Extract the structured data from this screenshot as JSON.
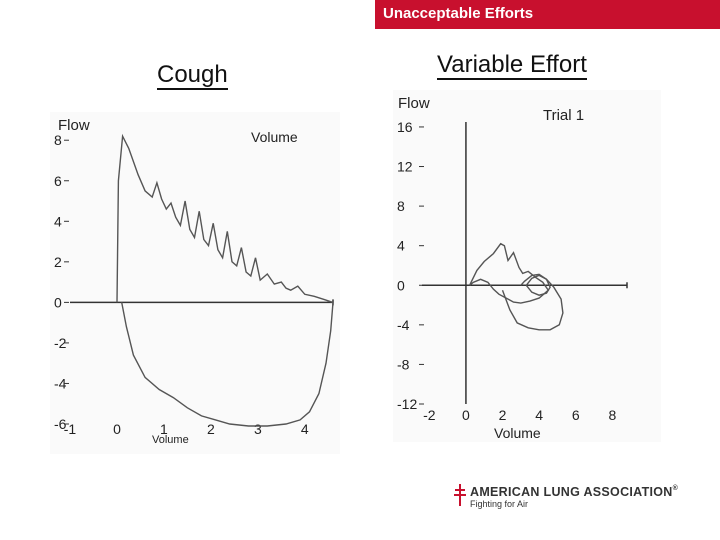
{
  "header": {
    "banner_text": "Unacceptable Efforts",
    "banner_color": "#c8102e"
  },
  "titles": {
    "left": "Cough",
    "right": "Variable Effort"
  },
  "chart_data": [
    {
      "type": "line",
      "title": "Cough",
      "ylabel": "Flow",
      "x_axis_label_top": "Volume",
      "xlabel": "Volume",
      "xlim": [
        -1,
        4.6
      ],
      "ylim": [
        -6,
        8.8
      ],
      "y_ticks": [
        8,
        6,
        4,
        2,
        0,
        -2,
        -4,
        -6
      ],
      "y_tick_labels": [
        "8",
        "6",
        "4",
        "2",
        "0",
        "-2",
        "-4",
        "-6"
      ],
      "x_ticks": [
        -1,
        0,
        1,
        2,
        3,
        4
      ],
      "x_tick_labels": [
        "-1",
        "0",
        "1",
        "2",
        "3",
        "4"
      ],
      "series": [
        {
          "loop": "expiratory",
          "x": [
            0,
            0.03,
            0.12,
            0.25,
            0.45,
            0.6,
            0.75,
            0.85,
            0.95,
            1.05,
            1.15,
            1.25,
            1.35,
            1.45,
            1.55,
            1.65,
            1.75,
            1.85,
            1.95,
            2.05,
            2.15,
            2.25,
            2.35,
            2.45,
            2.55,
            2.65,
            2.75,
            2.85,
            2.95,
            3.05,
            3.2,
            3.35,
            3.5,
            3.6,
            3.7,
            3.85,
            4.0,
            4.2,
            4.4,
            4.6
          ],
          "y": [
            0,
            6,
            8.2,
            7.6,
            6.3,
            5.5,
            5.2,
            5.9,
            5.1,
            4.6,
            4.9,
            4.2,
            3.8,
            5.0,
            3.6,
            3.2,
            4.5,
            3.1,
            2.8,
            3.9,
            2.6,
            2.2,
            3.5,
            2.0,
            1.8,
            2.7,
            1.5,
            1.3,
            2.2,
            1.1,
            1.4,
            0.9,
            1.0,
            0.7,
            0.6,
            0.8,
            0.4,
            0.3,
            0.15,
            0
          ]
        },
        {
          "loop": "inspiratory",
          "x": [
            0.1,
            0.2,
            0.35,
            0.6,
            0.9,
            1.2,
            1.5,
            1.8,
            2.1,
            2.4,
            2.8,
            3.2,
            3.6,
            3.9,
            4.1,
            4.3,
            4.45,
            4.55,
            4.6
          ],
          "y": [
            0,
            -1.2,
            -2.6,
            -3.7,
            -4.3,
            -4.7,
            -5.2,
            -5.6,
            -5.8,
            -6.0,
            -6.1,
            -6.1,
            -6.0,
            -5.8,
            -5.4,
            -4.5,
            -3.0,
            -1.4,
            0
          ]
        }
      ]
    },
    {
      "type": "line",
      "title": "Variable Effort",
      "legend": "Trial 1",
      "ylabel": "Flow",
      "xlabel": "Volume",
      "xlim": [
        -2.4,
        8.8
      ],
      "ylim": [
        -12,
        16.5
      ],
      "y_ticks": [
        16,
        12,
        8,
        4,
        0,
        -4,
        -8,
        -12
      ],
      "y_tick_labels": [
        "16",
        "12",
        "8",
        "4",
        "0",
        "-4",
        "-8",
        "-12"
      ],
      "x_ticks": [
        -2,
        0,
        2,
        4,
        6,
        8
      ],
      "x_tick_labels": [
        "-2",
        "0",
        "2",
        "4",
        "6",
        "8"
      ],
      "series": [
        {
          "name": "Trial 1",
          "loop": "expiratory",
          "x": [
            0.2,
            0.6,
            1.0,
            1.5,
            1.9,
            2.1,
            2.3,
            2.6,
            2.9,
            3.1,
            3.4,
            3.8,
            4.2,
            4.5,
            4.0,
            3.5,
            3.0,
            2.6,
            2.2,
            1.8,
            1.5,
            1.2,
            0.8,
            0.4,
            0.2
          ],
          "y": [
            0,
            1.5,
            2.4,
            3.2,
            4.2,
            4.0,
            2.5,
            3.3,
            1.8,
            1.2,
            1.4,
            0.8,
            0.3,
            -0.5,
            -1.3,
            -1.6,
            -1.8,
            -1.7,
            -1.3,
            -0.9,
            -0.4,
            0.3,
            0.6,
            0.3,
            0
          ]
        },
        {
          "name": "Trial 1",
          "loop": "inspiratory",
          "x": [
            2.0,
            2.4,
            2.8,
            3.4,
            4.0,
            4.6,
            5.1,
            5.3,
            5.2,
            4.8,
            4.4,
            4.0,
            3.6,
            3.2,
            3.0
          ],
          "y": [
            -0.5,
            -2.5,
            -3.8,
            -4.3,
            -4.5,
            -4.5,
            -4.0,
            -2.8,
            -1.4,
            -0.2,
            0.6,
            1.1,
            1.0,
            0.4,
            0
          ]
        },
        {
          "name": "Trial 1",
          "loop": "small-loop",
          "x": [
            3.3,
            3.6,
            4.0,
            4.4,
            4.6,
            4.4,
            4.0,
            3.6,
            3.3
          ],
          "y": [
            0,
            0.7,
            1.0,
            0.6,
            -0.2,
            -0.8,
            -1.0,
            -0.7,
            0
          ]
        }
      ]
    }
  ],
  "logo": {
    "name": "AMERICAN LUNG ASSOCIATION",
    "registered": "®",
    "tagline": "Fighting for Air",
    "cross_color": "#c8102e"
  }
}
